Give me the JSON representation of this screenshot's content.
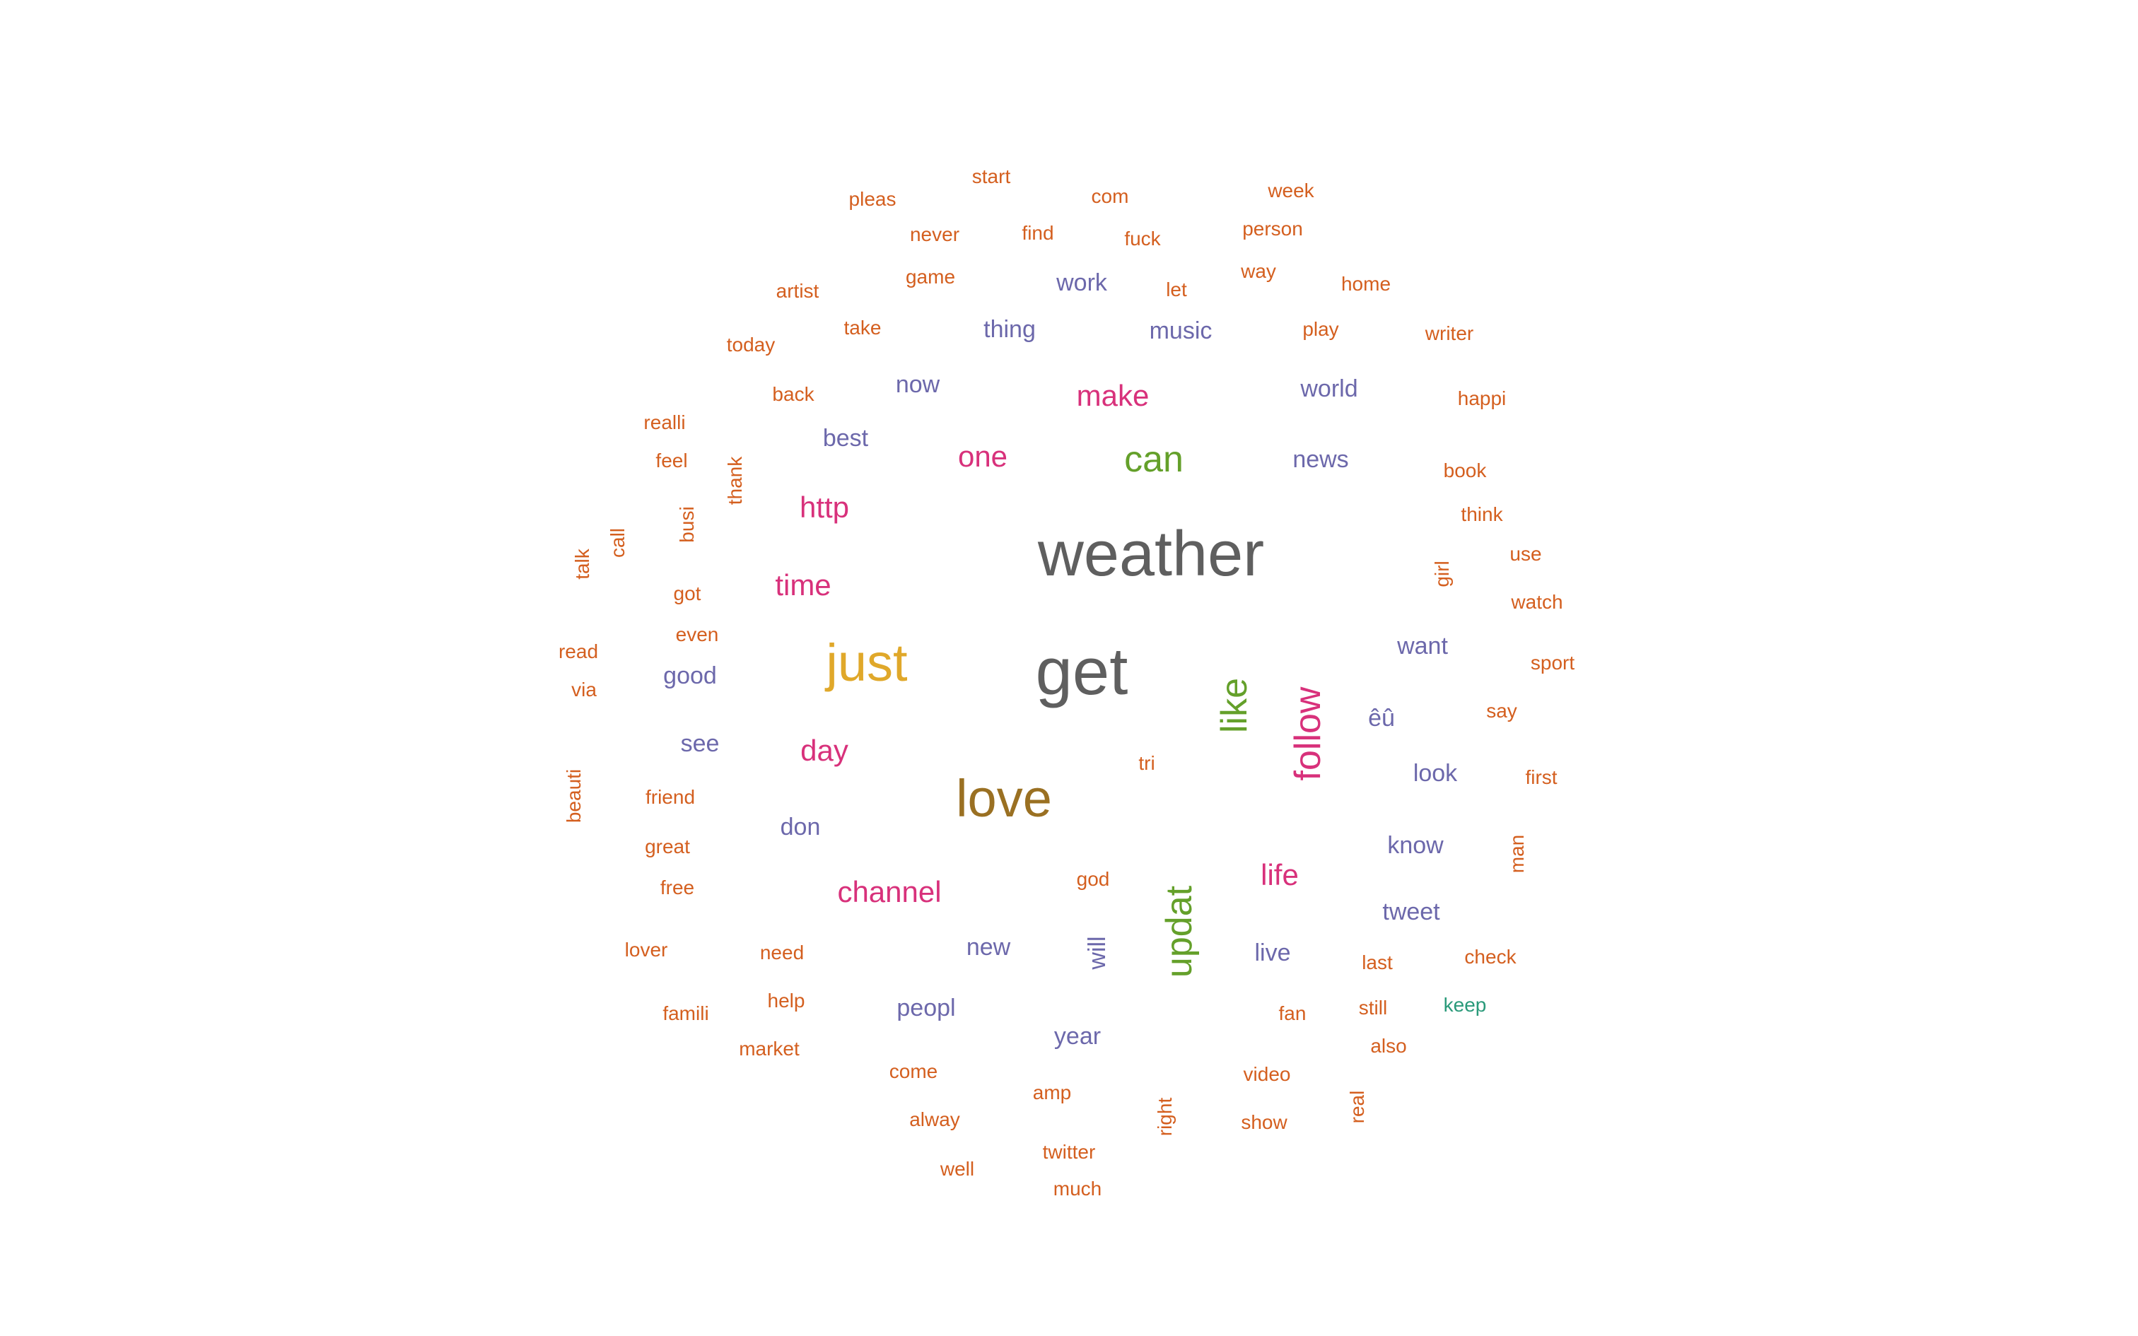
{
  "palette": {
    "gray": "#5f5f5f",
    "orange": "#d45f1f",
    "purple": "#6c68ab",
    "magenta": "#d8317b",
    "green": "#64a02a",
    "gold": "#e0a82a",
    "olive": "#9a7022",
    "teal": "#2a9a7a"
  },
  "words": [
    {
      "text": "weather",
      "color": "#5f5f5f"
    },
    {
      "text": "get",
      "color": "#5f5f5f"
    },
    {
      "text": "love",
      "color": "#9a7022"
    },
    {
      "text": "just",
      "color": "#e0a82a"
    },
    {
      "text": "like",
      "color": "#64a02a"
    },
    {
      "text": "updat",
      "color": "#64a02a"
    },
    {
      "text": "can",
      "color": "#64a02a"
    },
    {
      "text": "follow",
      "color": "#d8317b"
    },
    {
      "text": "channel",
      "color": "#d8317b"
    },
    {
      "text": "make",
      "color": "#d8317b"
    },
    {
      "text": "one",
      "color": "#d8317b"
    },
    {
      "text": "http",
      "color": "#d8317b"
    },
    {
      "text": "time",
      "color": "#d8317b"
    },
    {
      "text": "day",
      "color": "#d8317b"
    },
    {
      "text": "life",
      "color": "#d8317b"
    },
    {
      "text": "now",
      "color": "#6c68ab"
    },
    {
      "text": "best",
      "color": "#6c68ab"
    },
    {
      "text": "work",
      "color": "#6c68ab"
    },
    {
      "text": "thing",
      "color": "#6c68ab"
    },
    {
      "text": "music",
      "color": "#6c68ab"
    },
    {
      "text": "world",
      "color": "#6c68ab"
    },
    {
      "text": "news",
      "color": "#6c68ab"
    },
    {
      "text": "want",
      "color": "#6c68ab"
    },
    {
      "text": "good",
      "color": "#6c68ab"
    },
    {
      "text": "see",
      "color": "#6c68ab"
    },
    {
      "text": "don",
      "color": "#6c68ab"
    },
    {
      "text": "êû",
      "color": "#6c68ab"
    },
    {
      "text": "look",
      "color": "#6c68ab"
    },
    {
      "text": "know",
      "color": "#6c68ab"
    },
    {
      "text": "tweet",
      "color": "#6c68ab"
    },
    {
      "text": "new",
      "color": "#6c68ab"
    },
    {
      "text": "will",
      "color": "#6c68ab"
    },
    {
      "text": "live",
      "color": "#6c68ab"
    },
    {
      "text": "peopl",
      "color": "#6c68ab"
    },
    {
      "text": "year",
      "color": "#6c68ab"
    },
    {
      "text": "start",
      "color": "#d45f1f"
    },
    {
      "text": "pleas",
      "color": "#d45f1f"
    },
    {
      "text": "com",
      "color": "#d45f1f"
    },
    {
      "text": "week",
      "color": "#d45f1f"
    },
    {
      "text": "never",
      "color": "#d45f1f"
    },
    {
      "text": "find",
      "color": "#d45f1f"
    },
    {
      "text": "fuck",
      "color": "#d45f1f"
    },
    {
      "text": "person",
      "color": "#d45f1f"
    },
    {
      "text": "game",
      "color": "#d45f1f"
    },
    {
      "text": "way",
      "color": "#d45f1f"
    },
    {
      "text": "artist",
      "color": "#d45f1f"
    },
    {
      "text": "let",
      "color": "#d45f1f"
    },
    {
      "text": "home",
      "color": "#d45f1f"
    },
    {
      "text": "take",
      "color": "#d45f1f"
    },
    {
      "text": "play",
      "color": "#d45f1f"
    },
    {
      "text": "today",
      "color": "#d45f1f"
    },
    {
      "text": "writer",
      "color": "#d45f1f"
    },
    {
      "text": "back",
      "color": "#d45f1f"
    },
    {
      "text": "happi",
      "color": "#d45f1f"
    },
    {
      "text": "realli",
      "color": "#d45f1f"
    },
    {
      "text": "feel",
      "color": "#d45f1f"
    },
    {
      "text": "thank",
      "color": "#d45f1f"
    },
    {
      "text": "book",
      "color": "#d45f1f"
    },
    {
      "text": "think",
      "color": "#d45f1f"
    },
    {
      "text": "busi",
      "color": "#d45f1f"
    },
    {
      "text": "call",
      "color": "#d45f1f"
    },
    {
      "text": "use",
      "color": "#d45f1f"
    },
    {
      "text": "talk",
      "color": "#d45f1f"
    },
    {
      "text": "girl",
      "color": "#d45f1f"
    },
    {
      "text": "got",
      "color": "#d45f1f"
    },
    {
      "text": "watch",
      "color": "#d45f1f"
    },
    {
      "text": "even",
      "color": "#d45f1f"
    },
    {
      "text": "read",
      "color": "#d45f1f"
    },
    {
      "text": "sport",
      "color": "#d45f1f"
    },
    {
      "text": "via",
      "color": "#d45f1f"
    },
    {
      "text": "say",
      "color": "#d45f1f"
    },
    {
      "text": "tri",
      "color": "#d45f1f"
    },
    {
      "text": "beauti",
      "color": "#d45f1f"
    },
    {
      "text": "first",
      "color": "#d45f1f"
    },
    {
      "text": "friend",
      "color": "#d45f1f"
    },
    {
      "text": "great",
      "color": "#d45f1f"
    },
    {
      "text": "man",
      "color": "#d45f1f"
    },
    {
      "text": "god",
      "color": "#d45f1f"
    },
    {
      "text": "free",
      "color": "#d45f1f"
    },
    {
      "text": "lover",
      "color": "#d45f1f"
    },
    {
      "text": "need",
      "color": "#d45f1f"
    },
    {
      "text": "last",
      "color": "#d45f1f"
    },
    {
      "text": "check",
      "color": "#d45f1f"
    },
    {
      "text": "help",
      "color": "#d45f1f"
    },
    {
      "text": "famili",
      "color": "#d45f1f"
    },
    {
      "text": "still",
      "color": "#d45f1f"
    },
    {
      "text": "keep",
      "color": "#2a9a7a"
    },
    {
      "text": "fan",
      "color": "#d45f1f"
    },
    {
      "text": "market",
      "color": "#d45f1f"
    },
    {
      "text": "also",
      "color": "#d45f1f"
    },
    {
      "text": "come",
      "color": "#d45f1f"
    },
    {
      "text": "video",
      "color": "#d45f1f"
    },
    {
      "text": "amp",
      "color": "#d45f1f"
    },
    {
      "text": "real",
      "color": "#d45f1f"
    },
    {
      "text": "right",
      "color": "#d45f1f"
    },
    {
      "text": "alway",
      "color": "#d45f1f"
    },
    {
      "text": "show",
      "color": "#d45f1f"
    },
    {
      "text": "twitter",
      "color": "#d45f1f"
    },
    {
      "text": "well",
      "color": "#d45f1f"
    },
    {
      "text": "much",
      "color": "#d45f1f"
    }
  ]
}
